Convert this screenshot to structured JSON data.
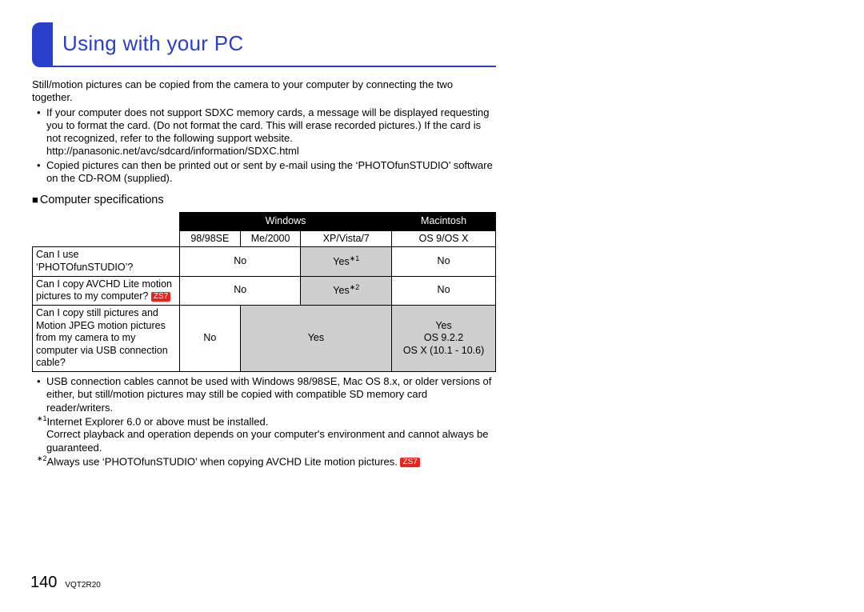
{
  "header": {
    "title": "Using with your PC"
  },
  "intro": "Still/motion pictures can be copied from the camera to your computer by connecting the two together.",
  "bullets": [
    "If your computer does not support SDXC memory cards, a message will be displayed requesting you to format the card. (Do not format the card. This will erase recorded pictures.) If the card is not recognized, refer to the following support website. http://panasonic.net/avc/sdcard/information/SDXC.html",
    "Copied pictures can then be printed out or sent by e-mail using the ‘PHOTOfunSTUDIO’ software on the CD-ROM (supplied)."
  ],
  "section_heading": "Computer specifications",
  "table": {
    "header": {
      "windows": "Windows",
      "mac": "Macintosh"
    },
    "subheader": {
      "win1": "98/98SE",
      "win2": "Me/2000",
      "win3": "XP/Vista/7",
      "mac": "OS 9/OS X"
    },
    "rows": [
      {
        "label_pre": "Can I use ‘PHOTOfunSTUDIO’?",
        "badge": "",
        "win12": "No",
        "win3": "Yes",
        "win3_ref": "∗1",
        "mac": "No",
        "win3_shaded": true
      },
      {
        "label_pre": "Can I copy AVCHD Lite motion pictures to my computer? ",
        "badge": "ZS7",
        "win12": "No",
        "win3": "Yes",
        "win3_ref": "∗2",
        "mac": "No",
        "win3_shaded": true
      },
      {
        "label_pre": "Can I copy still pictures and Motion JPEG motion pictures from my camera to my computer via USB connection cable?",
        "badge": "",
        "win1": "No",
        "win23": "Yes",
        "mac_l1": "Yes",
        "mac_l2": "OS 9.2.2",
        "mac_l3": "OS X (10.1 - 10.6)",
        "shaded_23": true,
        "shaded_mac": true
      }
    ]
  },
  "notes_bullet": "USB connection cables cannot be used with Windows 98/98SE, Mac OS 8.x, or older versions of either, but still/motion pictures may still be copied with compatible SD memory card reader/writers.",
  "note_star1_a": "Internet Explorer 6.0 or above must be installed.",
  "note_star1_b": "Correct playback and operation depends on your computer's environment and cannot always be guaranteed.",
  "note_star2": "Always use ‘PHOTOfunSTUDIO’ when copying AVCHD Lite motion pictures. ",
  "zs7_label": "ZS7",
  "ref1": "∗1",
  "ref2": "∗2",
  "footer": {
    "page": "140",
    "docid": "VQT2R20"
  },
  "colors": {
    "accent": "#2a3fcc",
    "badge": "#e8241c",
    "shade": "#cfcfcf"
  }
}
